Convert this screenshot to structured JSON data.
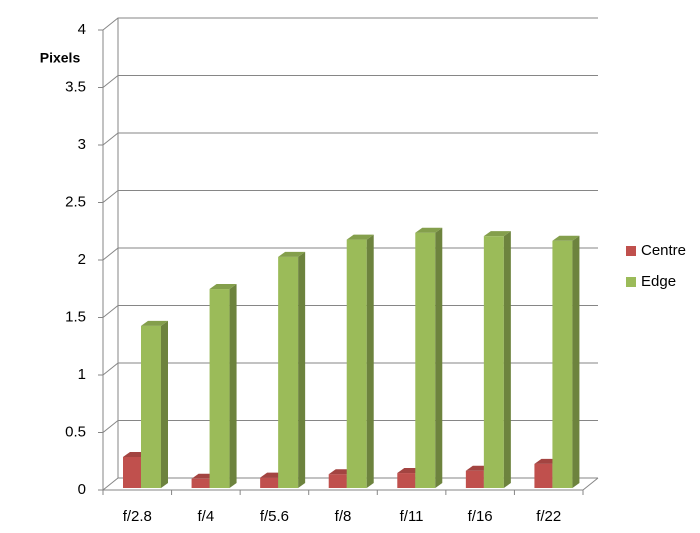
{
  "chart_data": {
    "type": "bar3d",
    "y_label": "Pixels",
    "categories": [
      "f/2.8",
      "f/4",
      "f/5.6",
      "f/8",
      "f/11",
      "f/16",
      "f/22"
    ],
    "series": [
      {
        "name": "Centre",
        "color": "#c0504d",
        "values": [
          0.27,
          0.08,
          0.09,
          0.12,
          0.13,
          0.15,
          0.21
        ]
      },
      {
        "name": "Edge",
        "color": "#9bbb59",
        "values": [
          1.41,
          1.73,
          2.01,
          2.16,
          2.22,
          2.19,
          2.15
        ]
      }
    ],
    "ylim": [
      0,
      4
    ],
    "yticks": [
      0,
      0.5,
      1,
      1.5,
      2,
      2.5,
      3,
      3.5,
      4
    ],
    "grid": true,
    "legend": "right"
  }
}
